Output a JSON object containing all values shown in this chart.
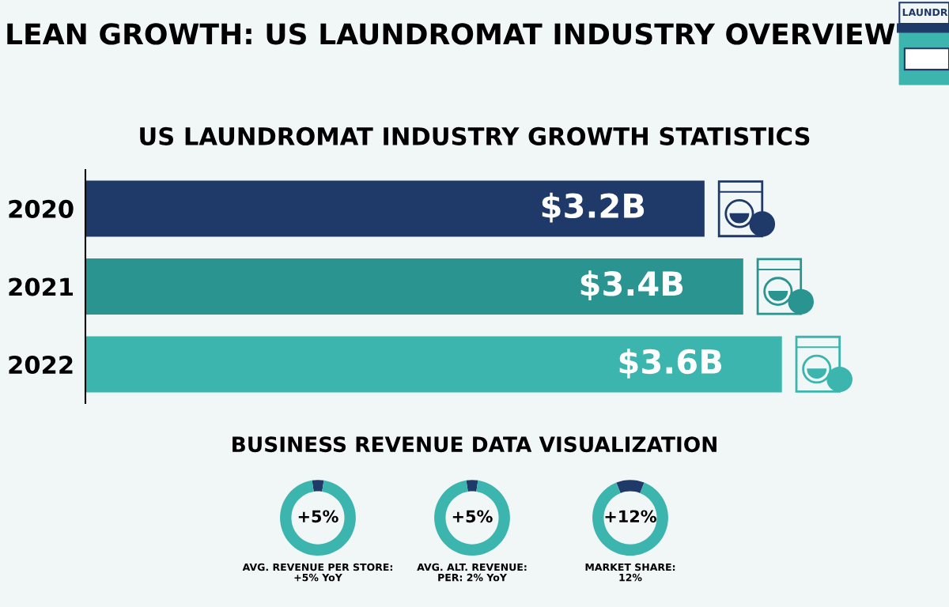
{
  "chart_data": [
    {
      "type": "bar",
      "orientation": "horizontal",
      "title": "LEAN GROWTH: US LAUNDROMAT INDUSTRY OVERVIEW",
      "subtitle": "US LAUNDROMAT INDUSTRY GROWTH STATISTICS",
      "categories": [
        "2020",
        "2021",
        "2022"
      ],
      "values": [
        3.2,
        3.4,
        3.6
      ],
      "colors": [
        "#1f3a68",
        "#2a9490",
        "#3bb5ad"
      ],
      "value_labels": [
        "$3.2B",
        "$3.4B",
        "$3.6B"
      ],
      "annotations": [
        "BUSINESS REVENUE DATA VISUALIZATION",
        "LAUNDR"
      ]
    },
    {
      "type": "donut",
      "categories": [
        null,
        null
      ],
      "values": [
        5,
        95
      ],
      "colors": [
        "#1f3a68",
        "#3bb5ad"
      ],
      "annotations": [
        "+5%",
        "AVG. REVENUE PER STORE:\n+5% YoY"
      ]
    },
    {
      "type": "donut",
      "categories": [
        null,
        null
      ],
      "values": [
        5,
        95
      ],
      "colors": [
        "#1f3a68",
        "#3bb5ad"
      ],
      "annotations": [
        "+5%",
        "AVG. ALT. REVENUE:\nPER: 2% YoY"
      ]
    },
    {
      "type": "donut",
      "categories": [
        null,
        null
      ],
      "values": [
        12,
        88
      ],
      "colors": [
        "#1f3a68",
        "#3bb5ad"
      ],
      "annotations": [
        "+12%",
        "MARKET SHARE:\n12%"
      ]
    }
  ]
}
